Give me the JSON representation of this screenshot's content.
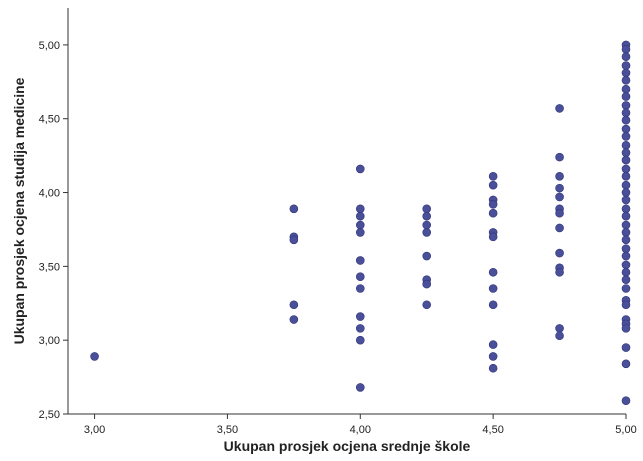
{
  "chart_data": {
    "type": "scatter",
    "title": "",
    "xlabel": "Ukupan prosjek ocjena srednje škole",
    "ylabel": "Ukupan prosjek ocjena studija medicine",
    "xlim": [
      2.9,
      5.0
    ],
    "ylim": [
      2.5,
      5.25
    ],
    "x_ticks": [
      3.0,
      3.5,
      4.0,
      4.5,
      5.0
    ],
    "x_tick_labels": [
      "3,00",
      "3,50",
      "4,00",
      "4,50",
      "5,00"
    ],
    "y_ticks": [
      2.5,
      3.0,
      3.5,
      4.0,
      4.5,
      5.0
    ],
    "y_tick_labels": [
      "2,50",
      "3,00",
      "3,50",
      "4,00",
      "4,50",
      "5,00"
    ],
    "grid": false,
    "marker_color": "#4a4f9a",
    "points": [
      [
        3.0,
        2.89
      ],
      [
        3.75,
        3.89
      ],
      [
        3.75,
        3.7
      ],
      [
        3.75,
        3.68
      ],
      [
        3.75,
        3.24
      ],
      [
        3.75,
        3.14
      ],
      [
        4.0,
        4.16
      ],
      [
        4.0,
        3.89
      ],
      [
        4.0,
        3.84
      ],
      [
        4.0,
        3.78
      ],
      [
        4.0,
        3.73
      ],
      [
        4.0,
        3.54
      ],
      [
        4.0,
        3.43
      ],
      [
        4.0,
        3.35
      ],
      [
        4.0,
        3.16
      ],
      [
        4.0,
        3.08
      ],
      [
        4.0,
        3.0
      ],
      [
        4.0,
        2.68
      ],
      [
        4.25,
        3.89
      ],
      [
        4.25,
        3.84
      ],
      [
        4.25,
        3.78
      ],
      [
        4.25,
        3.73
      ],
      [
        4.25,
        3.57
      ],
      [
        4.25,
        3.41
      ],
      [
        4.25,
        3.38
      ],
      [
        4.25,
        3.24
      ],
      [
        4.5,
        4.11
      ],
      [
        4.5,
        4.05
      ],
      [
        4.5,
        3.95
      ],
      [
        4.5,
        3.92
      ],
      [
        4.5,
        3.86
      ],
      [
        4.5,
        3.73
      ],
      [
        4.5,
        3.7
      ],
      [
        4.5,
        3.46
      ],
      [
        4.5,
        3.35
      ],
      [
        4.5,
        3.24
      ],
      [
        4.5,
        2.97
      ],
      [
        4.5,
        2.89
      ],
      [
        4.5,
        2.81
      ],
      [
        4.75,
        4.57
      ],
      [
        4.75,
        4.24
      ],
      [
        4.75,
        4.11
      ],
      [
        4.75,
        4.03
      ],
      [
        4.75,
        3.97
      ],
      [
        4.75,
        3.89
      ],
      [
        4.75,
        3.86
      ],
      [
        4.75,
        3.76
      ],
      [
        4.75,
        3.59
      ],
      [
        4.75,
        3.49
      ],
      [
        4.75,
        3.46
      ],
      [
        4.75,
        3.08
      ],
      [
        4.75,
        3.03
      ],
      [
        5.0,
        5.0
      ],
      [
        5.0,
        4.97
      ],
      [
        5.0,
        4.92
      ],
      [
        5.0,
        4.86
      ],
      [
        5.0,
        4.81
      ],
      [
        5.0,
        4.76
      ],
      [
        5.0,
        4.7
      ],
      [
        5.0,
        4.65
      ],
      [
        5.0,
        4.59
      ],
      [
        5.0,
        4.54
      ],
      [
        5.0,
        4.49
      ],
      [
        5.0,
        4.43
      ],
      [
        5.0,
        4.38
      ],
      [
        5.0,
        4.32
      ],
      [
        5.0,
        4.27
      ],
      [
        5.0,
        4.22
      ],
      [
        5.0,
        4.16
      ],
      [
        5.0,
        4.11
      ],
      [
        5.0,
        4.05
      ],
      [
        5.0,
        4.0
      ],
      [
        5.0,
        3.95
      ],
      [
        5.0,
        3.89
      ],
      [
        5.0,
        3.84
      ],
      [
        5.0,
        3.78
      ],
      [
        5.0,
        3.73
      ],
      [
        5.0,
        3.68
      ],
      [
        5.0,
        3.62
      ],
      [
        5.0,
        3.57
      ],
      [
        5.0,
        3.51
      ],
      [
        5.0,
        3.46
      ],
      [
        5.0,
        3.41
      ],
      [
        5.0,
        3.35
      ],
      [
        5.0,
        3.27
      ],
      [
        5.0,
        3.24
      ],
      [
        5.0,
        3.14
      ],
      [
        5.0,
        3.11
      ],
      [
        5.0,
        3.08
      ],
      [
        5.0,
        2.95
      ],
      [
        5.0,
        2.84
      ],
      [
        5.0,
        2.59
      ]
    ]
  }
}
